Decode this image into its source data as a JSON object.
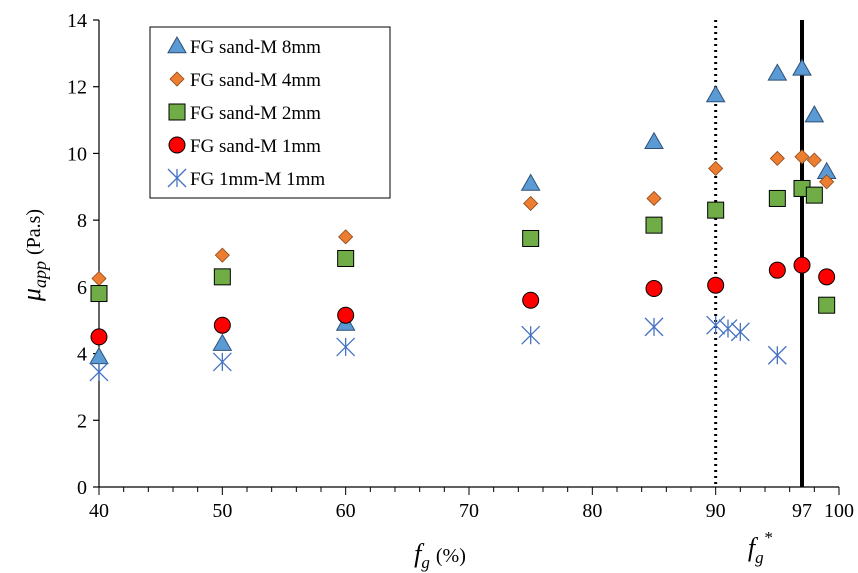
{
  "chart_data": {
    "type": "scatter",
    "xlabel": "f",
    "xlabel_sub": "g",
    "xlabel_unit": "(%)",
    "ylabel": "μ",
    "ylabel_sub": "app",
    "ylabel_unit": "(Pa.s)",
    "xlim": [
      40,
      100
    ],
    "ylim": [
      0,
      14
    ],
    "x_ticks": [
      40,
      50,
      60,
      70,
      80,
      90,
      97,
      100
    ],
    "x_tick_labels": [
      "40",
      "50",
      "60",
      "70",
      "80",
      "90",
      "97",
      "100"
    ],
    "y_ticks": [
      0,
      2,
      4,
      6,
      8,
      10,
      12,
      14
    ],
    "y_tick_labels": [
      "0",
      "2",
      "4",
      "6",
      "8",
      "10",
      "12",
      "14"
    ],
    "grid": false,
    "legend_position": "top-left",
    "vertical_lines": [
      {
        "x": 90,
        "style": "dotted"
      },
      {
        "x": 97,
        "style": "solid",
        "label": "f",
        "label_sub": "g",
        "label_sup": "*"
      }
    ],
    "series": [
      {
        "name": "FG sand-M 8mm",
        "marker": "triangle",
        "color": "#5b9bd5",
        "points": [
          [
            40,
            3.9
          ],
          [
            50,
            4.3
          ],
          [
            60,
            4.9
          ],
          [
            75,
            9.1
          ],
          [
            85,
            10.35
          ],
          [
            90,
            11.75
          ],
          [
            95,
            12.4
          ],
          [
            97,
            12.55
          ],
          [
            98,
            11.15
          ],
          [
            99,
            9.45
          ]
        ]
      },
      {
        "name": "FG sand-M 4mm",
        "marker": "diamond",
        "color": "#ed7d31",
        "points": [
          [
            40,
            6.25
          ],
          [
            50,
            6.95
          ],
          [
            60,
            7.5
          ],
          [
            75,
            8.5
          ],
          [
            85,
            8.65
          ],
          [
            90,
            9.55
          ],
          [
            95,
            9.85
          ],
          [
            97,
            9.9
          ],
          [
            98,
            9.8
          ],
          [
            99,
            9.15
          ]
        ]
      },
      {
        "name": "FG sand-M 2mm",
        "marker": "square",
        "color": "#70ad47",
        "points": [
          [
            40,
            5.8
          ],
          [
            50,
            6.3
          ],
          [
            60,
            6.85
          ],
          [
            75,
            7.45
          ],
          [
            85,
            7.85
          ],
          [
            90,
            8.3
          ],
          [
            95,
            8.65
          ],
          [
            97,
            8.95
          ],
          [
            98,
            8.75
          ],
          [
            99,
            5.45
          ]
        ]
      },
      {
        "name": "FG sand-M 1mm",
        "marker": "circle",
        "color": "#ff0000",
        "points": [
          [
            40,
            4.5
          ],
          [
            50,
            4.85
          ],
          [
            60,
            5.15
          ],
          [
            75,
            5.6
          ],
          [
            85,
            5.95
          ],
          [
            90,
            6.05
          ],
          [
            95,
            6.5
          ],
          [
            97,
            6.65
          ],
          [
            99,
            6.3
          ]
        ]
      },
      {
        "name": "FG 1mm-M 1mm",
        "marker": "asterisk",
        "color": "#4472c4",
        "points": [
          [
            40,
            3.45
          ],
          [
            50,
            3.75
          ],
          [
            60,
            4.2
          ],
          [
            75,
            4.55
          ],
          [
            85,
            4.8
          ],
          [
            90,
            4.85
          ],
          [
            91,
            4.75
          ],
          [
            92,
            4.65
          ],
          [
            95,
            3.95
          ]
        ]
      }
    ]
  }
}
